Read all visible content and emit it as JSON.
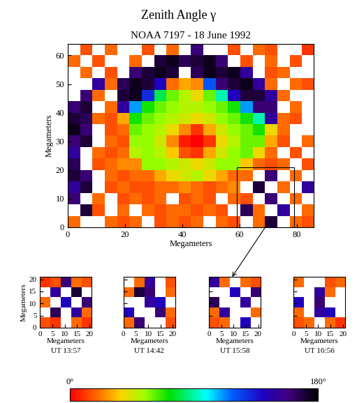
{
  "title": "Zenith Angle γ",
  "chart_data": [
    {
      "type": "heatmap",
      "title": "NOAA 7197 - 18 June 1992",
      "x_label": "Megameters",
      "y_label": "Megameters",
      "xlim": [
        0,
        86
      ],
      "ylim": [
        0,
        64
      ],
      "xticks": [
        0,
        20,
        40,
        60,
        80
      ],
      "yticks": [
        0,
        10,
        20,
        30,
        40,
        50,
        60
      ],
      "highlight_region": {
        "x": [
          59,
          79
        ],
        "y": [
          0,
          21
        ]
      },
      "cells": [
        [
          null,
          15,
          null,
          20,
          null,
          null,
          15,
          null,
          20,
          null,
          160,
          null,
          null,
          15,
          null,
          20,
          15,
          null,
          null,
          10
        ],
        [
          20,
          null,
          15,
          null,
          null,
          20,
          null,
          170,
          175,
          165,
          170,
          175,
          160,
          null,
          15,
          null,
          20,
          null,
          15,
          null
        ],
        [
          null,
          20,
          null,
          15,
          null,
          160,
          170,
          175,
          170,
          null,
          165,
          175,
          170,
          175,
          150,
          null,
          15,
          20,
          null,
          null
        ],
        [
          null,
          null,
          150,
          20,
          165,
          175,
          170,
          140,
          20,
          30,
          25,
          120,
          160,
          170,
          175,
          150,
          20,
          null,
          20,
          15
        ],
        [
          null,
          160,
          20,
          null,
          170,
          175,
          130,
          80,
          60,
          50,
          40,
          60,
          90,
          140,
          170,
          170,
          150,
          20,
          null,
          null
        ],
        [
          160,
          170,
          null,
          20,
          150,
          110,
          70,
          60,
          55,
          50,
          50,
          55,
          60,
          70,
          110,
          160,
          160,
          null,
          20,
          null
        ],
        [
          170,
          165,
          20,
          15,
          30,
          70,
          60,
          55,
          50,
          45,
          40,
          45,
          55,
          60,
          70,
          90,
          150,
          20,
          15,
          null
        ],
        [
          175,
          160,
          null,
          15,
          20,
          60,
          55,
          50,
          40,
          25,
          10,
          30,
          45,
          55,
          60,
          70,
          40,
          20,
          null,
          null
        ],
        [
          160,
          170,
          null,
          20,
          15,
          55,
          55,
          45,
          25,
          5,
          0,
          10,
          40,
          50,
          60,
          60,
          30,
          15,
          null,
          20
        ],
        [
          150,
          null,
          20,
          15,
          20,
          50,
          55,
          50,
          35,
          15,
          10,
          30,
          45,
          55,
          60,
          40,
          20,
          null,
          15,
          null
        ],
        [
          165,
          null,
          15,
          20,
          25,
          25,
          55,
          55,
          50,
          45,
          40,
          45,
          55,
          55,
          35,
          20,
          15,
          20,
          null,
          15
        ],
        [
          170,
          160,
          null,
          20,
          15,
          20,
          20,
          30,
          40,
          45,
          50,
          40,
          30,
          20,
          20,
          null,
          160,
          null,
          20,
          null
        ],
        [
          150,
          170,
          null,
          15,
          20,
          15,
          15,
          20,
          20,
          25,
          20,
          15,
          20,
          25,
          null,
          170,
          null,
          20,
          null,
          150
        ],
        [
          160,
          null,
          20,
          null,
          15,
          20,
          15,
          20,
          null,
          15,
          20,
          15,
          null,
          20,
          15,
          null,
          160,
          null,
          20,
          null
        ],
        [
          null,
          170,
          15,
          null,
          20,
          null,
          20,
          15,
          20,
          20,
          15,
          20,
          15,
          null,
          165,
          20,
          null,
          150,
          null,
          20
        ],
        [
          20,
          null,
          null,
          20,
          15,
          20,
          null,
          15,
          20,
          15,
          20,
          null,
          20,
          15,
          null,
          20,
          170,
          null,
          20,
          15
        ]
      ]
    },
    {
      "type": "heatmap",
      "subtitle": "UT 13:57",
      "x_label": "Megameters",
      "y_label": "Megameters",
      "xlim": [
        0,
        21
      ],
      "ylim": [
        0,
        21
      ],
      "xticks": [
        0,
        5,
        10,
        15,
        20
      ],
      "yticks": [
        0,
        5,
        10,
        15,
        20
      ],
      "cells": [
        [
          10,
          15,
          160,
          20,
          15
        ],
        [
          null,
          150,
          null,
          170,
          null
        ],
        [
          20,
          null,
          140,
          null,
          160
        ],
        [
          null,
          165,
          null,
          150,
          20
        ],
        [
          15,
          10,
          null,
          20,
          10
        ]
      ]
    },
    {
      "type": "heatmap",
      "subtitle": "UT 14:42",
      "x_label": "Megameters",
      "tick_labels": "x",
      "xlim": [
        0,
        21
      ],
      "ylim": [
        0,
        21
      ],
      "xticks": [
        0,
        5,
        10,
        15,
        20
      ],
      "yticks": [
        0,
        5,
        10,
        15,
        20
      ],
      "cells": [
        [
          null,
          20,
          150,
          null,
          15
        ],
        [
          20,
          170,
          160,
          null,
          20
        ],
        [
          null,
          null,
          150,
          140,
          null
        ],
        [
          140,
          null,
          null,
          160,
          20
        ],
        [
          20,
          160,
          null,
          null,
          15
        ]
      ]
    },
    {
      "type": "heatmap",
      "subtitle": "UT 15:58",
      "x_label": "Megameters",
      "tick_labels": "x",
      "xlim": [
        0,
        21
      ],
      "ylim": [
        0,
        21
      ],
      "xticks": [
        0,
        5,
        10,
        15,
        20
      ],
      "yticks": [
        0,
        5,
        10,
        15,
        20
      ],
      "cells": [
        [
          150,
          20,
          null,
          20,
          15
        ],
        [
          null,
          null,
          140,
          null,
          160
        ],
        [
          165,
          null,
          null,
          150,
          null
        ],
        [
          20,
          150,
          null,
          null,
          20
        ],
        [
          15,
          20,
          null,
          140,
          null
        ]
      ]
    },
    {
      "type": "heatmap",
      "subtitle": "UT 16:56",
      "x_label": "Megameters",
      "tick_labels": "x",
      "xlim": [
        0,
        21
      ],
      "ylim": [
        0,
        21
      ],
      "xticks": [
        0,
        5,
        10,
        15,
        20
      ],
      "yticks": [
        0,
        5,
        10,
        15,
        20
      ],
      "cells": [
        [
          20,
          null,
          null,
          15,
          20
        ],
        [
          null,
          null,
          150,
          20,
          null
        ],
        [
          140,
          null,
          160,
          null,
          null
        ],
        [
          20,
          null,
          150,
          140,
          null
        ],
        [
          15,
          20,
          null,
          20,
          10
        ]
      ]
    }
  ],
  "colorbar": {
    "range": [
      0,
      180
    ],
    "ticks": [
      {
        "value": 0,
        "label": "0°"
      },
      {
        "value": 180,
        "label": "180°"
      }
    ]
  }
}
